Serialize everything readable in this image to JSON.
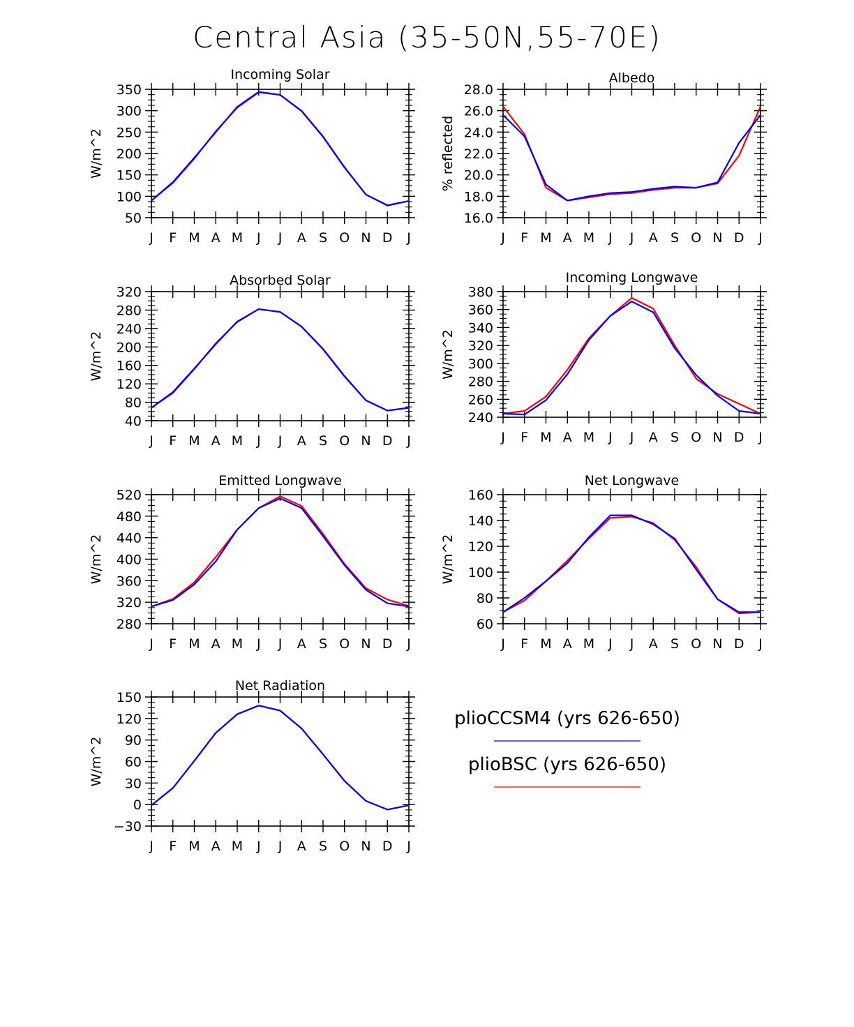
{
  "title": "Central Asia (35-50N,55-70E)",
  "colors": {
    "ccsm4": "#0000ff",
    "bsc": "#ff0000"
  },
  "legend": [
    {
      "label": "plioCCSM4 (yrs 626-650)",
      "color": "#0000ff"
    },
    {
      "label": "plioBSC (yrs 626-650)",
      "color": "#ff0000"
    }
  ],
  "chart_data": [
    {
      "type": "line",
      "title": "Incoming Solar",
      "ylabel": "W/m^2",
      "categories": [
        "J",
        "F",
        "M",
        "A",
        "M",
        "J",
        "J",
        "A",
        "S",
        "O",
        "N",
        "D",
        "J"
      ],
      "ylim": [
        50,
        350
      ],
      "yticks": [
        "350",
        "300",
        "250",
        "200",
        "150",
        "100",
        "50"
      ],
      "series": [
        {
          "name": "plioBSC (yrs 626-650)",
          "color": "#ff0000",
          "values": [
            90,
            131,
            188,
            252,
            307,
            343,
            337,
            300,
            240,
            168,
            104,
            78,
            89
          ]
        },
        {
          "name": "plioCCSM4 (yrs 626-650)",
          "color": "#0000ff",
          "values": [
            90,
            133,
            190,
            250,
            309,
            344,
            337,
            299,
            239,
            167,
            104,
            79,
            89
          ]
        }
      ]
    },
    {
      "type": "line",
      "title": "Albedo",
      "ylabel": "% reflected",
      "categories": [
        "J",
        "F",
        "M",
        "A",
        "M",
        "J",
        "J",
        "A",
        "S",
        "O",
        "N",
        "D",
        "J"
      ],
      "ylim": [
        16.0,
        28.0
      ],
      "yticks": [
        "28.0",
        "26.0",
        "24.0",
        "22.0",
        "20.0",
        "18.0",
        "16.0"
      ],
      "series": [
        {
          "name": "plioBSC (yrs 626-650)",
          "color": "#ff0000",
          "values": [
            26.4,
            23.8,
            18.8,
            17.6,
            17.9,
            18.2,
            18.3,
            18.6,
            18.8,
            18.8,
            19.2,
            21.8,
            26.4
          ]
        },
        {
          "name": "plioCCSM4 (yrs 626-650)",
          "color": "#0000ff",
          "values": [
            25.6,
            23.6,
            19.1,
            17.6,
            18.0,
            18.3,
            18.4,
            18.7,
            18.9,
            18.8,
            19.3,
            23.0,
            25.6
          ]
        }
      ]
    },
    {
      "type": "line",
      "title": "Absorbed Solar",
      "ylabel": "W/m^2",
      "categories": [
        "J",
        "F",
        "M",
        "A",
        "M",
        "J",
        "J",
        "A",
        "S",
        "O",
        "N",
        "D",
        "J"
      ],
      "ylim": [
        40,
        320
      ],
      "yticks": [
        "320",
        "280",
        "240",
        "200",
        "160",
        "120",
        "80",
        "40"
      ],
      "series": [
        {
          "name": "plioBSC (yrs 626-650)",
          "color": "#ff0000",
          "values": [
            68,
            100,
            152,
            208,
            254,
            282,
            276,
            244,
            196,
            137,
            84,
            62,
            68
          ]
        },
        {
          "name": "plioCCSM4 (yrs 626-650)",
          "color": "#0000ff",
          "values": [
            68,
            102,
            153,
            206,
            255,
            282,
            276,
            244,
            195,
            136,
            84,
            62,
            68
          ]
        }
      ]
    },
    {
      "type": "line",
      "title": "Incoming Longwave",
      "ylabel": "W/m^2",
      "categories": [
        "J",
        "F",
        "M",
        "A",
        "M",
        "J",
        "J",
        "A",
        "S",
        "O",
        "N",
        "D",
        "J"
      ],
      "ylim": [
        240,
        380
      ],
      "yticks": [
        "380",
        "360",
        "340",
        "320",
        "300",
        "280",
        "260",
        "240"
      ],
      "series": [
        {
          "name": "plioBSC (yrs 626-650)",
          "color": "#ff0000",
          "values": [
            244,
            247,
            263,
            293,
            328,
            353,
            373,
            361,
            320,
            283,
            266,
            255,
            244
          ]
        },
        {
          "name": "plioCCSM4 (yrs 626-650)",
          "color": "#0000ff",
          "values": [
            244,
            243,
            259,
            288,
            326,
            353,
            369,
            357,
            317,
            287,
            264,
            247,
            244
          ]
        }
      ]
    },
    {
      "type": "line",
      "title": "Emitted Longwave",
      "ylabel": "W/m^2",
      "categories": [
        "J",
        "F",
        "M",
        "A",
        "M",
        "J",
        "J",
        "A",
        "S",
        "O",
        "N",
        "D",
        "J"
      ],
      "ylim": [
        280,
        520
      ],
      "yticks": [
        "520",
        "480",
        "440",
        "400",
        "360",
        "320",
        "280"
      ],
      "series": [
        {
          "name": "plioBSC (yrs 626-650)",
          "color": "#ff0000",
          "values": [
            312,
            326,
            357,
            404,
            455,
            495,
            517,
            499,
            447,
            391,
            346,
            325,
            313
          ]
        },
        {
          "name": "plioCCSM4 (yrs 626-650)",
          "color": "#0000ff",
          "values": [
            312,
            324,
            353,
            396,
            455,
            495,
            513,
            495,
            443,
            389,
            343,
            318,
            312
          ]
        }
      ]
    },
    {
      "type": "line",
      "title": "Net Longwave",
      "ylabel": "W/m^2",
      "categories": [
        "J",
        "F",
        "M",
        "A",
        "M",
        "J",
        "J",
        "A",
        "S",
        "O",
        "N",
        "D",
        "J"
      ],
      "ylim": [
        60,
        160
      ],
      "yticks": [
        "160",
        "140",
        "120",
        "100",
        "80",
        "60"
      ],
      "series": [
        {
          "name": "plioBSC (yrs 626-650)",
          "color": "#ff0000",
          "values": [
            69,
            78,
            93,
            109,
            126,
            142,
            143,
            138,
            125,
            104,
            79,
            68,
            69
          ]
        },
        {
          "name": "plioCCSM4 (yrs 626-650)",
          "color": "#0000ff",
          "values": [
            69,
            80,
            93,
            107,
            127,
            144,
            144,
            137,
            126,
            102,
            79,
            69,
            69
          ]
        }
      ]
    },
    {
      "type": "line",
      "title": "Net Radiation",
      "ylabel": "W/m^2",
      "categories": [
        "J",
        "F",
        "M",
        "A",
        "M",
        "J",
        "J",
        "A",
        "S",
        "O",
        "N",
        "D",
        "J"
      ],
      "ylim": [
        -30,
        150
      ],
      "yticks": [
        "150",
        "120",
        "90",
        "60",
        "30",
        "0",
        "-30"
      ],
      "series": [
        {
          "name": "plioBSC (yrs 626-650)",
          "color": "#ff0000",
          "values": [
            -1,
            23,
            61,
            100,
            126,
            138,
            131,
            106,
            70,
            33,
            5,
            -7,
            -1
          ]
        },
        {
          "name": "plioCCSM4 (yrs 626-650)",
          "color": "#0000ff",
          "values": [
            -1,
            23,
            61,
            100,
            126,
            138,
            131,
            106,
            70,
            33,
            5,
            -7,
            -1
          ]
        }
      ]
    }
  ]
}
